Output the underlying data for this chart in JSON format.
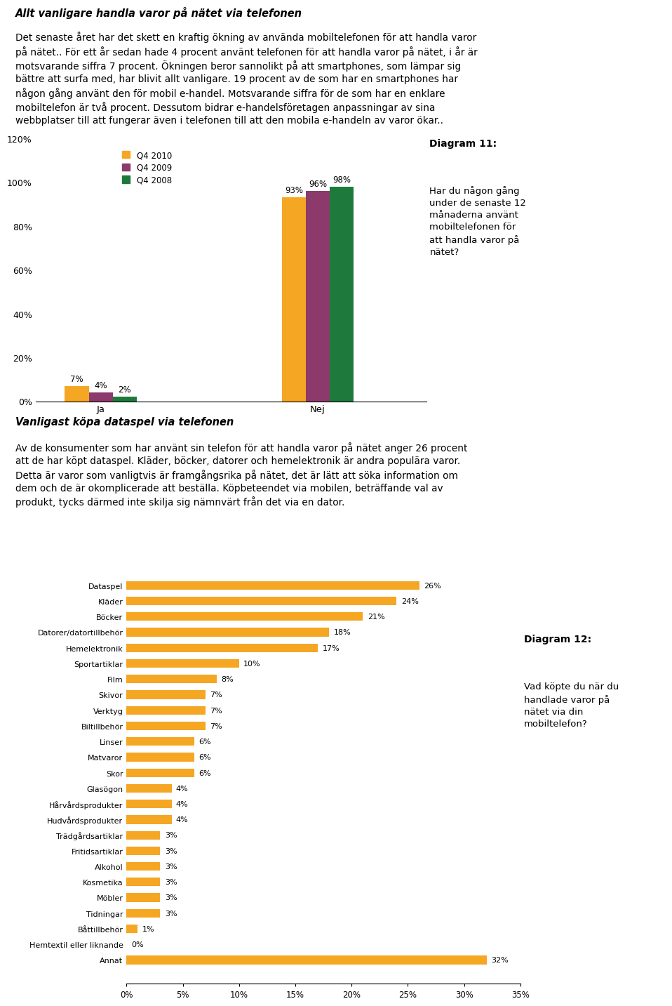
{
  "title1": "Allt vanligare handla varor på nätet via telefonen",
  "text1_lines": [
    "Det senaste året har det skett en kraftig ökning av använda mobiltelefonen för att handla varor",
    "på nätet.. För ett år sedan hade 4 procent använt telefonen för att handla varor på nätet, i år är",
    "motsvarande siffra 7 procent. Ökningen beror sannolikt på att smartphones, som lämpar sig",
    "bättre att surfa med, har blivit allt vanligare. 19 procent av de som har en smartphones har",
    "någon gång använt den för mobil e-handel. Motsvarande siffra för de som har en enklare",
    "mobiltelefon är två procent. Dessutom bidrar e-handelsföretagen anpassningar av sina",
    "webbplatser till att fungerar även i telefonen till att den mobila e-handeln av varor ökar.."
  ],
  "diagram11_title": "Diagram 11:",
  "diagram11_text_lines": [
    "Har du någon gång",
    "under de senaste 12",
    "månaderna använt",
    "mobiltelefonen för",
    "att handla varor på",
    "nätet?"
  ],
  "chart1_categories": [
    "Ja",
    "Nej"
  ],
  "chart1_series": {
    "Q4 2010": {
      "Ja": 7,
      "Nej": 93
    },
    "Q4 2009": {
      "Ja": 4,
      "Nej": 96
    },
    "Q4 2008": {
      "Ja": 2,
      "Nej": 98
    }
  },
  "chart1_colors": {
    "Q4 2010": "#F5A623",
    "Q4 2009": "#8B3A6B",
    "Q4 2008": "#1E7A3C"
  },
  "chart1_ytick_labels": [
    "0%",
    "20%",
    "40%",
    "60%",
    "80%",
    "100%",
    "120%"
  ],
  "title2": "Vanligast köpa dataspel via telefonen",
  "text2_lines": [
    "Av de konsumenter som har använt sin telefon för att handla varor på nätet anger 26 procent",
    "att de har köpt dataspel. Kläder, böcker, datorer och hemelektronik är andra populära varor.",
    "Detta är varor som vanligtvis är framgångsrika på nätet, det är lätt att söka information om",
    "dem och de är okomplicerade att beställa. Köpbeteendet via mobilen, beträffande val av",
    "produkt, tycks därmed inte skilja sig nämnvärt från det via en dator."
  ],
  "diagram12_title": "Diagram 12:",
  "diagram12_text_lines": [
    "Vad köpte du när du",
    "handlade varor på",
    "nätet via din",
    "mobiltelefon?"
  ],
  "chart2_categories": [
    "Dataspel",
    "Kläder",
    "Böcker",
    "Datorer/datortillbehör",
    "Hemelektronik",
    "Sportartiklar",
    "Film",
    "Skivor",
    "Verktyg",
    "Biltillbehör",
    "Linser",
    "Matvaror",
    "Skor",
    "Glasögon",
    "Hårvårdsprodukter",
    "Hudvårdsprodukter",
    "Trädgårdsartiklar",
    "Fritidsartiklar",
    "Alkohol",
    "Kosmetika",
    "Möbler",
    "Tidningar",
    "Båttillbehör",
    "Hemtextil eller liknande",
    "Annat"
  ],
  "chart2_values": [
    26,
    24,
    21,
    18,
    17,
    10,
    8,
    7,
    7,
    7,
    6,
    6,
    6,
    4,
    4,
    4,
    3,
    3,
    3,
    3,
    3,
    3,
    1,
    0,
    32
  ],
  "chart2_color": "#F5A623",
  "chart2_xtick_labels": [
    "0%",
    "5%",
    "10%",
    "15%",
    "20%",
    "25%",
    "30%",
    "35%"
  ]
}
